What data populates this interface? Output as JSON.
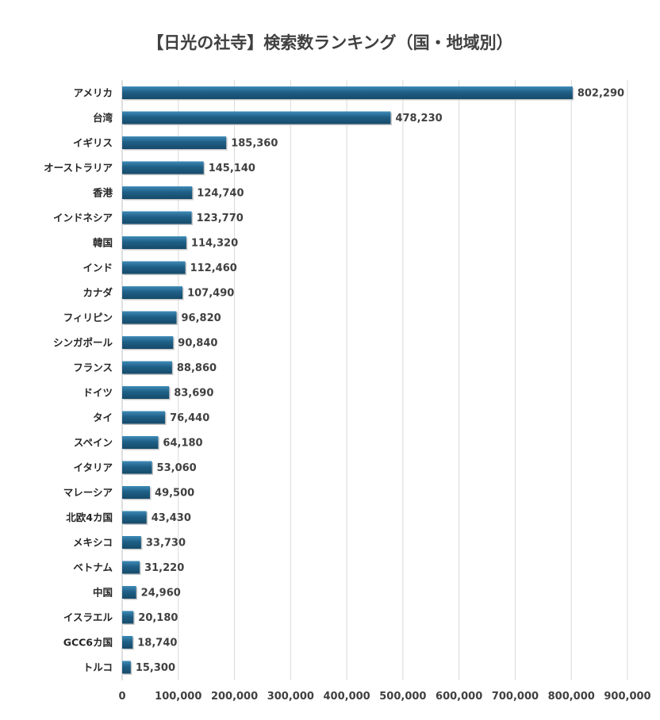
{
  "chart_data": {
    "type": "bar",
    "orientation": "horizontal",
    "title": "【日光の社寺】検索数ランキング（国・地域別）",
    "xlabel": "",
    "ylabel": "",
    "xlim": [
      0,
      900000
    ],
    "x_ticks": [
      "0",
      "100,000",
      "200,000",
      "300,000",
      "400,000",
      "500,000",
      "600,000",
      "700,000",
      "800,000",
      "900,000"
    ],
    "grid": "vertical",
    "bar_color": "#1f5f86",
    "categories": [
      "アメリカ",
      "台湾",
      "イギリス",
      "オーストラリア",
      "香港",
      "インドネシア",
      "韓国",
      "インド",
      "カナダ",
      "フィリピン",
      "シンガポール",
      "フランス",
      "ドイツ",
      "タイ",
      "スペイン",
      "イタリア",
      "マレーシア",
      "北欧4カ国",
      "メキシコ",
      "ベトナム",
      "中国",
      "イスラエル",
      "GCC6カ国",
      "トルコ"
    ],
    "values": [
      802290,
      478230,
      185360,
      145140,
      124740,
      123770,
      114320,
      112460,
      107490,
      96820,
      90840,
      88860,
      83690,
      76440,
      64180,
      53060,
      49500,
      43430,
      33730,
      31220,
      24960,
      20180,
      18740,
      15300
    ],
    "value_labels": [
      "802,290",
      "478,230",
      "185,360",
      "145,140",
      "124,740",
      "123,770",
      "114,320",
      "112,460",
      "107,490",
      "96,820",
      "90,840",
      "88,860",
      "83,690",
      "76,440",
      "64,180",
      "53,060",
      "49,500",
      "43,430",
      "33,730",
      "31,220",
      "24,960",
      "20,180",
      "18,740",
      "15,300"
    ]
  }
}
